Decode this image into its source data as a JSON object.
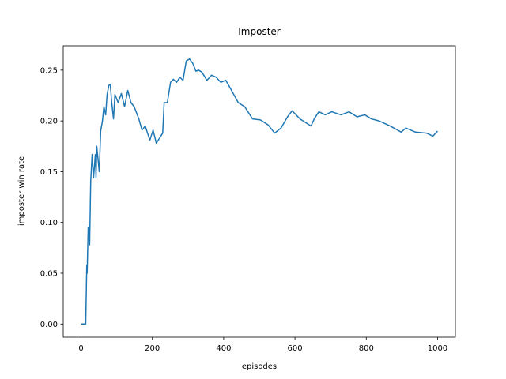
{
  "chart_data": {
    "type": "line",
    "title": "Imposter",
    "x_label": "episodes",
    "y_label": "imposter win rate",
    "x": [
      0,
      13,
      16,
      17,
      20,
      22,
      24,
      27,
      31,
      35,
      40,
      42,
      44,
      51,
      55,
      60,
      64,
      69,
      73,
      78,
      82,
      86,
      91,
      95,
      104,
      113,
      122,
      131,
      140,
      149,
      162,
      171,
      180,
      193,
      202,
      211,
      220,
      229,
      233,
      242,
      251,
      259,
      268,
      277,
      286,
      295,
      304,
      313,
      322,
      330,
      339,
      353,
      366,
      379,
      392,
      406,
      419,
      441,
      459,
      481,
      503,
      525,
      543,
      561,
      579,
      592,
      614,
      645,
      654,
      667,
      685,
      703,
      729,
      752,
      774,
      796,
      814,
      836,
      867,
      898,
      911,
      938,
      969,
      987,
      1000
    ],
    "series": [
      {
        "name": "imposter",
        "color": "#1f77b4",
        "values": [
          0,
          0,
          0.058,
          0.05,
          0.095,
          0.086,
          0.078,
          0.14,
          0.167,
          0.144,
          0.167,
          0.144,
          0.175,
          0.15,
          0.19,
          0.2,
          0.214,
          0.206,
          0.226,
          0.235,
          0.236,
          0.218,
          0.202,
          0.226,
          0.218,
          0.227,
          0.214,
          0.23,
          0.218,
          0.214,
          0.202,
          0.191,
          0.195,
          0.181,
          0.191,
          0.178,
          0.183,
          0.188,
          0.218,
          0.218,
          0.238,
          0.241,
          0.238,
          0.243,
          0.24,
          0.259,
          0.261,
          0.257,
          0.249,
          0.25,
          0.248,
          0.24,
          0.245,
          0.243,
          0.238,
          0.24,
          0.232,
          0.218,
          0.214,
          0.202,
          0.201,
          0.196,
          0.188,
          0.193,
          0.204,
          0.21,
          0.202,
          0.195,
          0.202,
          0.209,
          0.206,
          0.209,
          0.206,
          0.209,
          0.204,
          0.206,
          0.202,
          0.2,
          0.195,
          0.189,
          0.193,
          0.189,
          0.188,
          0.185,
          0.19
        ]
      }
    ],
    "xlim": [
      -50,
      1050
    ],
    "ylim": [
      -0.013,
      0.274
    ],
    "xticks": [
      0,
      200,
      400,
      600,
      800,
      1000
    ],
    "yticks": [
      {
        "value": 0,
        "label": "0.00"
      },
      0.05,
      {
        "value": 0.1,
        "label": "0.10"
      },
      0.15,
      {
        "value": 0.2,
        "label": "0.20"
      },
      0.25
    ]
  }
}
